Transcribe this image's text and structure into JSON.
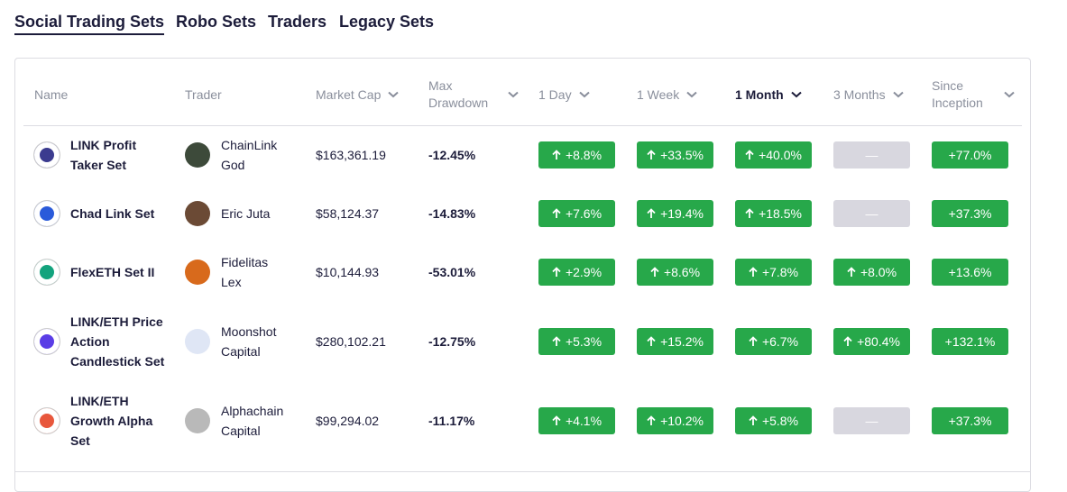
{
  "tabs": [
    "Social Trading Sets",
    "Robo Sets",
    "Traders",
    "Legacy Sets"
  ],
  "table": {
    "headers": [
      "Name",
      "Trader",
      "Market Cap",
      "Max Drawdown",
      "1 Day",
      "1 Week",
      "1 Month",
      "3 Months",
      "Since Inception"
    ],
    "rows": [
      [
        "LINK Profit Taker Set",
        "ChainLink God",
        "$163,361.19",
        "-12.45%",
        "+8.8%",
        "+33.5%",
        "+40.0%",
        "—",
        "+77.0%"
      ],
      [
        "Chad Link Set",
        "Eric Juta",
        "$58,124.37",
        "-14.83%",
        "+7.6%",
        "+19.4%",
        "+18.5%",
        "—",
        "+37.3%"
      ],
      [
        "FlexETH Set II",
        "Fidelitas Lex",
        "$10,144.93",
        "-53.01%",
        "+2.9%",
        "+8.6%",
        "+7.8%",
        "+8.0%",
        "+13.6%"
      ],
      [
        "LINK/ETH Price Action Candlestick Set",
        "Moonshot Capital",
        "$280,102.21",
        "-12.75%",
        "+5.3%",
        "+15.2%",
        "+6.7%",
        "+80.4%",
        "+132.1%"
      ],
      [
        "LINK/ETH Growth Alpha Set",
        "Alphachain Capital",
        "$99,294.02",
        "-11.17%",
        "+4.1%",
        "+10.2%",
        "+5.8%",
        "—",
        "+37.3%"
      ]
    ]
  }
}
